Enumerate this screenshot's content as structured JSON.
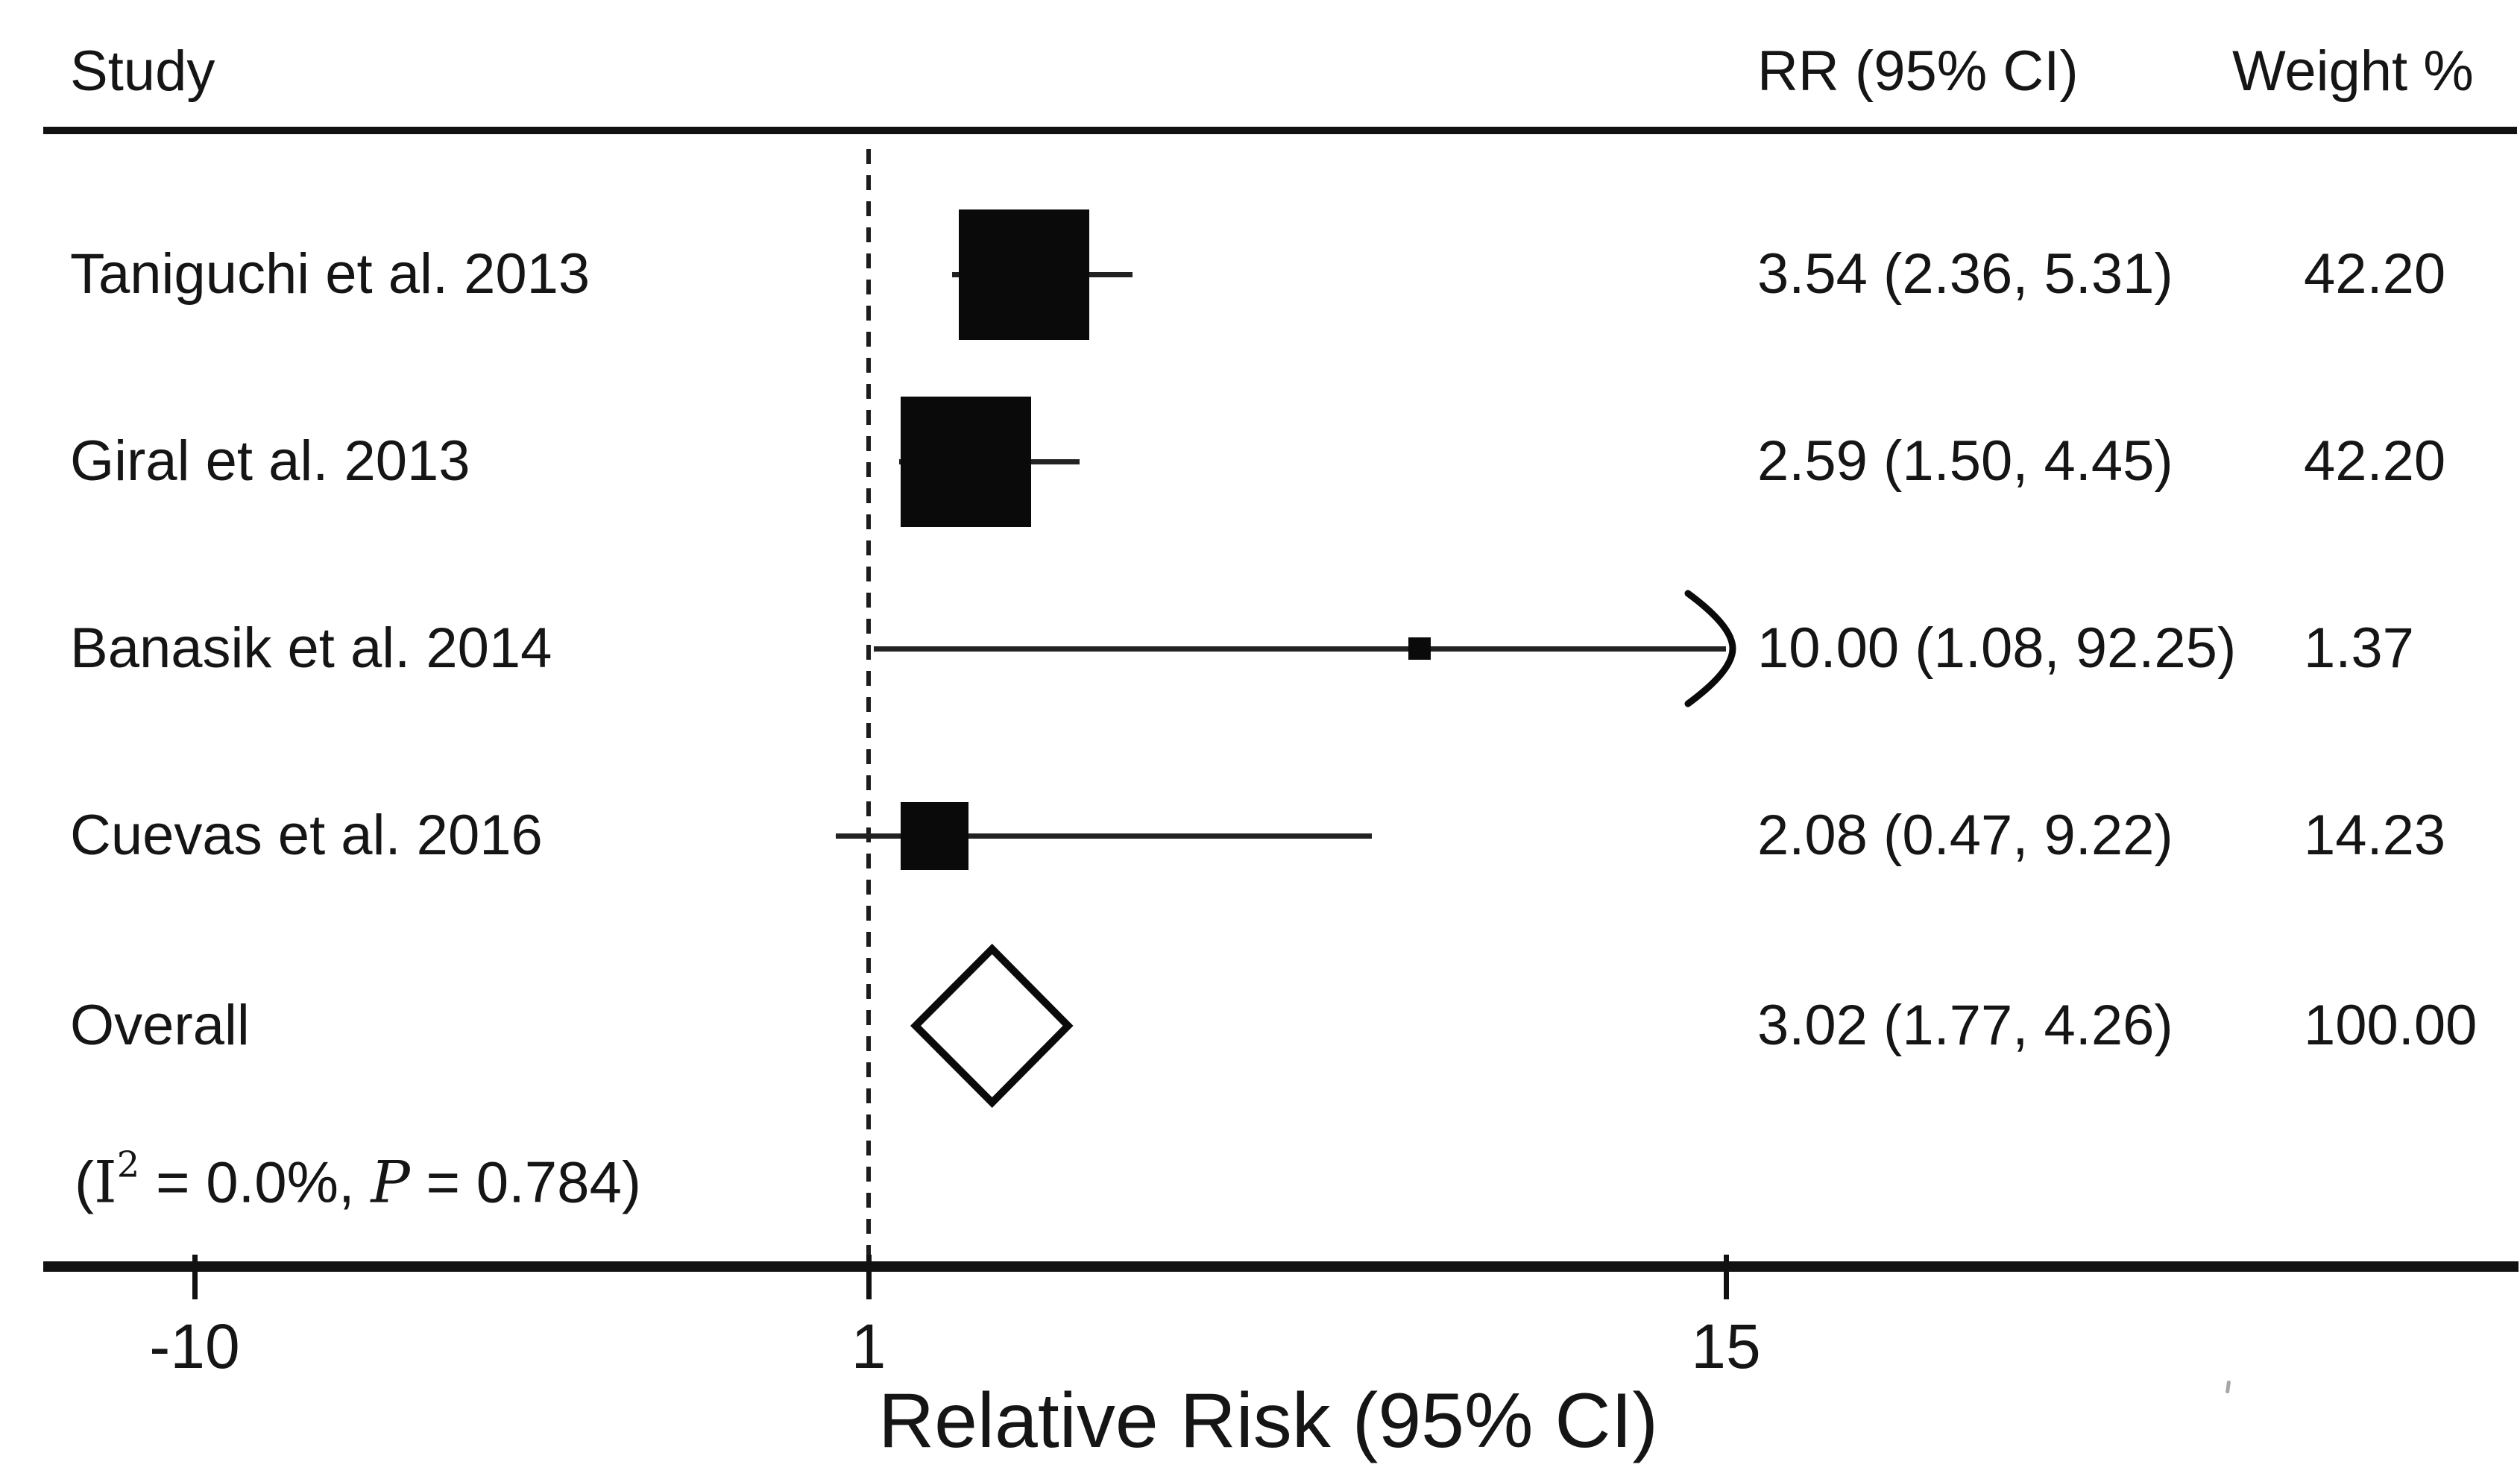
{
  "chart_data": {
    "type": "forest",
    "title": "",
    "columns": {
      "study": "Study",
      "rr": "RR (95% CI)",
      "weight": "Weight %"
    },
    "studies": [
      {
        "label": "Taniguchi et al. 2013",
        "rr": 3.54,
        "ci_low": 2.36,
        "ci_high": 5.31,
        "weight": 42.2,
        "rr_text": "3.54 (2.36, 5.31)",
        "weight_text": "42.20",
        "ci_clipped_high": false
      },
      {
        "label": "Giral et al. 2013",
        "rr": 2.59,
        "ci_low": 1.5,
        "ci_high": 4.45,
        "weight": 42.2,
        "rr_text": "2.59 (1.50, 4.45)",
        "weight_text": "42.20",
        "ci_clipped_high": false
      },
      {
        "label": "Banasik et al. 2014",
        "rr": 10.0,
        "ci_low": 1.08,
        "ci_high": 92.25,
        "weight": 1.37,
        "rr_text": "10.00 (1.08, 92.25)",
        "weight_text": "1.37",
        "ci_clipped_high": true
      },
      {
        "label": "Cuevas et al. 2016",
        "rr": 2.08,
        "ci_low": 0.47,
        "ci_high": 9.22,
        "weight": 14.23,
        "rr_text": "2.08 (0.47, 9.22)",
        "weight_text": "14.23",
        "ci_clipped_high": false
      }
    ],
    "overall": {
      "label": "Overall",
      "rr": 3.02,
      "ci_low": 1.77,
      "ci_high": 4.26,
      "weight": 100.0,
      "rr_text": "3.02 (1.77, 4.26)",
      "weight_text": "100.00"
    },
    "heterogeneity": {
      "open_paren": "(",
      "i_symbol": "I",
      "i_superscript": "2",
      "i_equals": " = 0.0%, ",
      "p_symbol": "P",
      "p_equals": " = 0.784",
      "close_paren": ")"
    },
    "x_axis": {
      "label": "Relative Risk (95% CI)",
      "ticks": [
        {
          "label": "-10",
          "value": -10
        },
        {
          "label": "1",
          "value": 1
        },
        {
          "label": "15",
          "value": 15
        }
      ],
      "reference_value": 1,
      "clip_value": 15,
      "scale": "linear"
    },
    "colors": {
      "ink": "#111111",
      "background": "#ffffff"
    }
  }
}
